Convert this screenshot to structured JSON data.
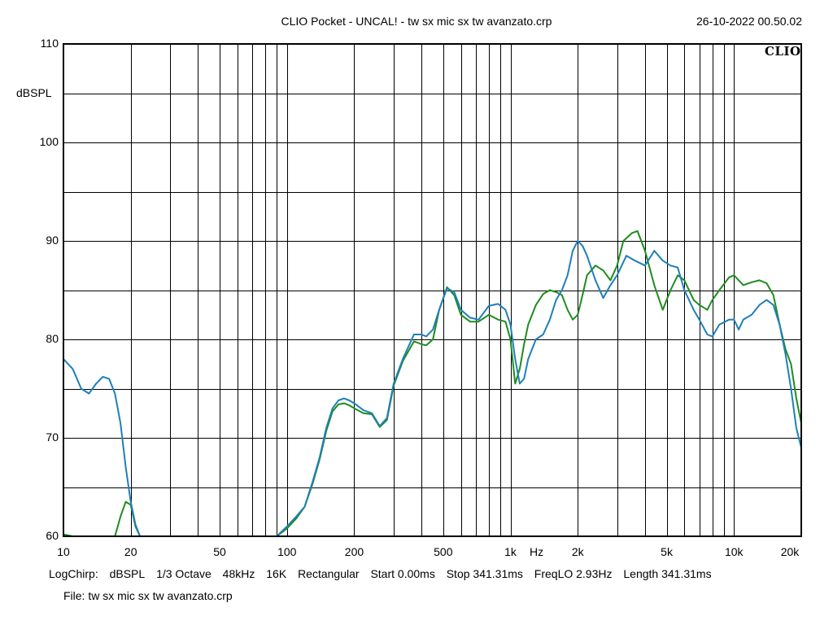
{
  "title": "CLIO Pocket - UNCAL! - tw sx mic sx tw avanzato.crp",
  "timestamp": "26-10-2022 00.50.02",
  "logo": "CLIO",
  "info": {
    "mode": "LogChirp:",
    "unit": "dBSPL",
    "smoothing": "1/3 Octave",
    "rate": "48kHz",
    "size": "16K",
    "window": "Rectangular",
    "start": "Start 0.00ms",
    "stop": "Stop 341.31ms",
    "freqlo": "FreqLO 2.93Hz",
    "length": "Length 341.31ms"
  },
  "file_line": "File: tw sx mic sx tw avanzato.crp",
  "chart_data": {
    "type": "line",
    "xscale": "log",
    "xlim": [
      10,
      20000
    ],
    "ylim": [
      60,
      110
    ],
    "ylabel": "dBSPL",
    "xlabel": "Hz",
    "grid": true,
    "y_ticks": [
      {
        "v": 110,
        "label": "110"
      },
      {
        "v": 100,
        "label": "100"
      },
      {
        "v": 90,
        "label": "90"
      },
      {
        "v": 80,
        "label": "80"
      },
      {
        "v": 70,
        "label": "70"
      },
      {
        "v": 60,
        "label": "60"
      }
    ],
    "x_ticks": [
      {
        "v": 10,
        "label": "10"
      },
      {
        "v": 20,
        "label": "20"
      },
      {
        "v": 50,
        "label": "50"
      },
      {
        "v": 100,
        "label": "100"
      },
      {
        "v": 200,
        "label": "200"
      },
      {
        "v": 500,
        "label": "500"
      },
      {
        "v": 1000,
        "label": "1k"
      },
      {
        "v": 2000,
        "label": "2k"
      },
      {
        "v": 5000,
        "label": "5k"
      },
      {
        "v": 10000,
        "label": "10k"
      },
      {
        "v": 20000,
        "label": "20k"
      }
    ],
    "series": [
      {
        "color": "#1f7fb8",
        "points": [
          [
            10,
            78
          ],
          [
            11,
            77
          ],
          [
            12,
            75
          ],
          [
            13,
            74.5
          ],
          [
            14,
            75.5
          ],
          [
            15,
            76.2
          ],
          [
            16,
            76
          ],
          [
            17,
            74.5
          ],
          [
            18,
            71.5
          ],
          [
            19,
            67
          ],
          [
            20,
            63.5
          ],
          [
            21,
            61.2
          ],
          [
            22,
            60
          ],
          [
            90,
            60
          ],
          [
            100,
            61
          ],
          [
            110,
            62
          ],
          [
            120,
            63
          ],
          [
            130,
            65.5
          ],
          [
            140,
            68
          ],
          [
            150,
            71
          ],
          [
            160,
            73
          ],
          [
            170,
            73.8
          ],
          [
            180,
            74
          ],
          [
            190,
            73.8
          ],
          [
            200,
            73.5
          ],
          [
            220,
            72.8
          ],
          [
            240,
            72.5
          ],
          [
            260,
            71.2
          ],
          [
            280,
            72
          ],
          [
            300,
            75.5
          ],
          [
            330,
            78
          ],
          [
            370,
            80.5
          ],
          [
            400,
            80.5
          ],
          [
            420,
            80.3
          ],
          [
            450,
            81
          ],
          [
            480,
            83
          ],
          [
            520,
            85.2
          ],
          [
            560,
            84.8
          ],
          [
            600,
            83
          ],
          [
            660,
            82.2
          ],
          [
            720,
            82
          ],
          [
            800,
            83.4
          ],
          [
            880,
            83.6
          ],
          [
            950,
            83
          ],
          [
            1000,
            81.5
          ],
          [
            1050,
            78
          ],
          [
            1100,
            75.5
          ],
          [
            1150,
            76
          ],
          [
            1200,
            78
          ],
          [
            1300,
            80
          ],
          [
            1400,
            80.5
          ],
          [
            1500,
            82
          ],
          [
            1600,
            84
          ],
          [
            1700,
            85
          ],
          [
            1800,
            86.5
          ],
          [
            1900,
            89
          ],
          [
            2000,
            90
          ],
          [
            2100,
            89.5
          ],
          [
            2200,
            88.5
          ],
          [
            2400,
            86
          ],
          [
            2600,
            84.2
          ],
          [
            2800,
            85.5
          ],
          [
            3000,
            86.5
          ],
          [
            3300,
            88.5
          ],
          [
            3600,
            88
          ],
          [
            4000,
            87.5
          ],
          [
            4400,
            89
          ],
          [
            4800,
            88
          ],
          [
            5200,
            87.5
          ],
          [
            5600,
            87.3
          ],
          [
            6000,
            85
          ],
          [
            6600,
            83
          ],
          [
            7000,
            82
          ],
          [
            7600,
            80.5
          ],
          [
            8000,
            80.3
          ],
          [
            8600,
            81.5
          ],
          [
            9500,
            82
          ],
          [
            10000,
            82
          ],
          [
            10500,
            81
          ],
          [
            11000,
            82
          ],
          [
            12000,
            82.5
          ],
          [
            13000,
            83.5
          ],
          [
            14000,
            84
          ],
          [
            15000,
            83.5
          ],
          [
            16000,
            81.5
          ],
          [
            17000,
            78.5
          ],
          [
            18000,
            75
          ],
          [
            19000,
            71
          ],
          [
            20000,
            69
          ]
        ]
      },
      {
        "color": "#1e8c1e",
        "points": [
          [
            10,
            60.2
          ],
          [
            11,
            60
          ],
          [
            17,
            60
          ],
          [
            18,
            62
          ],
          [
            19,
            63.5
          ],
          [
            20,
            63.2
          ],
          [
            21,
            61
          ],
          [
            22,
            60
          ],
          [
            90,
            60
          ],
          [
            100,
            60.8
          ],
          [
            110,
            61.8
          ],
          [
            120,
            63
          ],
          [
            130,
            65.3
          ],
          [
            140,
            67.8
          ],
          [
            150,
            70.7
          ],
          [
            160,
            72.7
          ],
          [
            170,
            73.4
          ],
          [
            180,
            73.5
          ],
          [
            190,
            73.3
          ],
          [
            200,
            73.0
          ],
          [
            220,
            72.5
          ],
          [
            240,
            72.4
          ],
          [
            260,
            71.1
          ],
          [
            280,
            71.8
          ],
          [
            300,
            75.3
          ],
          [
            330,
            77.8
          ],
          [
            370,
            79.8
          ],
          [
            400,
            79.5
          ],
          [
            420,
            79.4
          ],
          [
            450,
            80
          ],
          [
            480,
            83
          ],
          [
            520,
            85.3
          ],
          [
            560,
            84.5
          ],
          [
            600,
            82.5
          ],
          [
            660,
            81.8
          ],
          [
            720,
            81.8
          ],
          [
            800,
            82.5
          ],
          [
            880,
            82
          ],
          [
            950,
            81.8
          ],
          [
            1000,
            80
          ],
          [
            1050,
            75.5
          ],
          [
            1100,
            77
          ],
          [
            1150,
            79.5
          ],
          [
            1200,
            81.5
          ],
          [
            1300,
            83.5
          ],
          [
            1400,
            84.6
          ],
          [
            1500,
            85
          ],
          [
            1600,
            84.8
          ],
          [
            1700,
            84.5
          ],
          [
            1800,
            83
          ],
          [
            1900,
            82
          ],
          [
            2000,
            82.5
          ],
          [
            2100,
            84.5
          ],
          [
            2200,
            86.5
          ],
          [
            2400,
            87.5
          ],
          [
            2600,
            87
          ],
          [
            2800,
            86
          ],
          [
            3000,
            87.5
          ],
          [
            3200,
            90
          ],
          [
            3500,
            90.8
          ],
          [
            3700,
            91
          ],
          [
            4000,
            89
          ],
          [
            4400,
            85.5
          ],
          [
            4800,
            83
          ],
          [
            5200,
            85
          ],
          [
            5600,
            86.5
          ],
          [
            6000,
            86
          ],
          [
            6600,
            84
          ],
          [
            7000,
            83.5
          ],
          [
            7600,
            83
          ],
          [
            8000,
            84
          ],
          [
            8600,
            85
          ],
          [
            9500,
            86.3
          ],
          [
            10000,
            86.5
          ],
          [
            10500,
            86
          ],
          [
            11000,
            85.5
          ],
          [
            12000,
            85.8
          ],
          [
            13000,
            86
          ],
          [
            14000,
            85.7
          ],
          [
            15000,
            84.5
          ],
          [
            16000,
            81.5
          ],
          [
            17000,
            79
          ],
          [
            18000,
            77.5
          ],
          [
            19000,
            74
          ],
          [
            20000,
            71.5
          ]
        ]
      }
    ]
  }
}
